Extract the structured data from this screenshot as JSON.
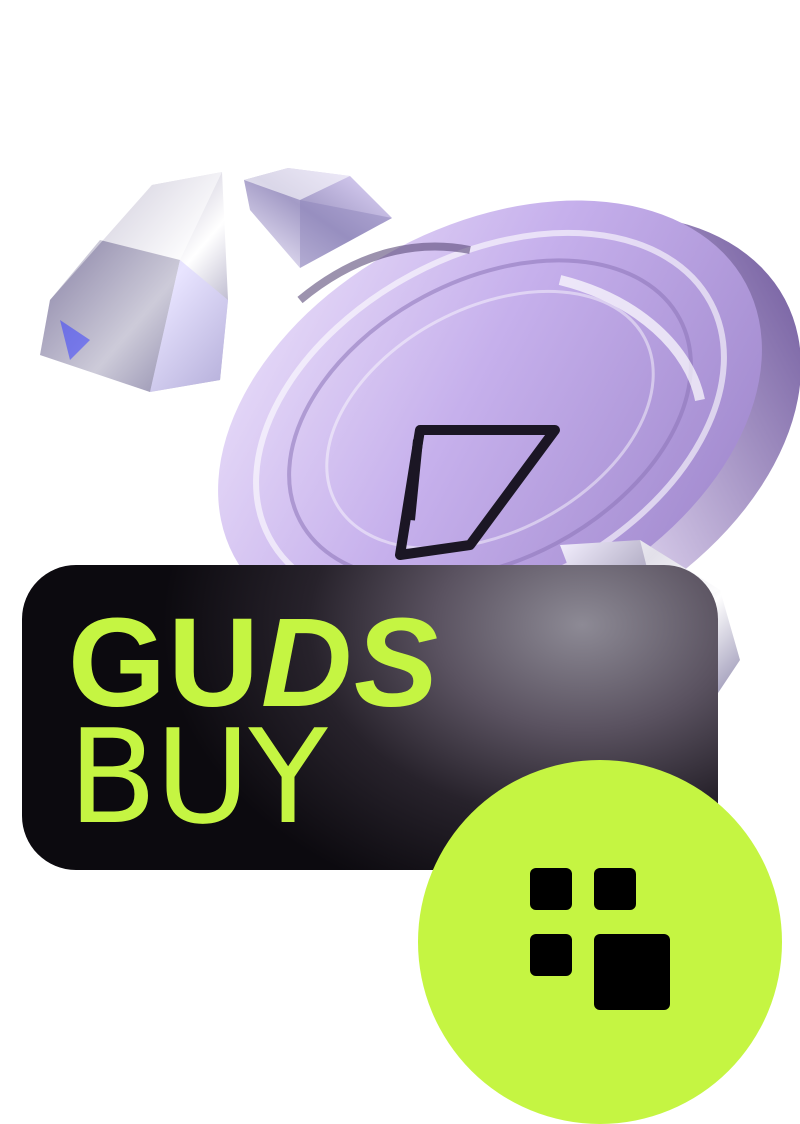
{
  "brand": {
    "title_part1": "GU",
    "title_part2": "DS",
    "title_line2": "BUY"
  },
  "colors": {
    "accent": "#c5f542",
    "badge_dark": "#0c0a0f",
    "coin": "#c9b3ec"
  },
  "icons": {
    "logo": "four-squares-icon",
    "coin_mark": "triangle-a-icon",
    "gems": "diamond-icon"
  }
}
